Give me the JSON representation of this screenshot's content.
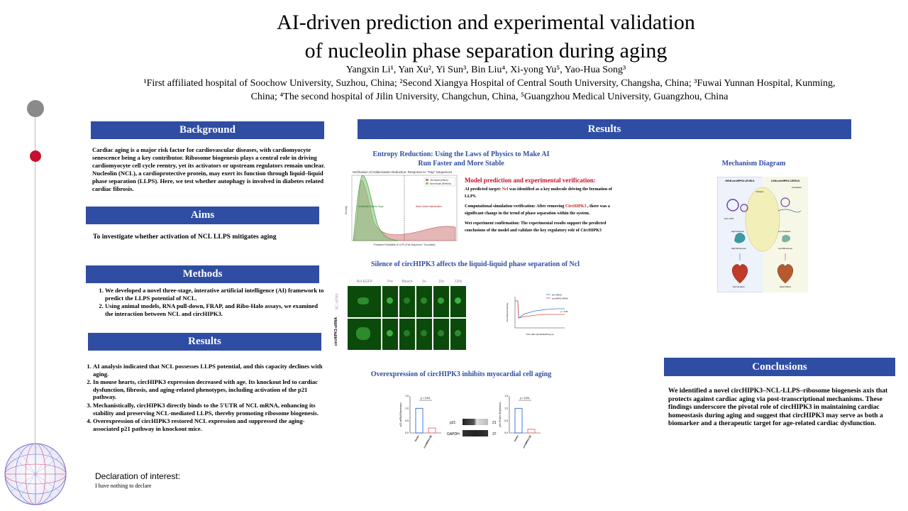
{
  "title": {
    "line1": "AI-driven prediction and experimental validation",
    "line2": "of nucleolin phase separation during aging"
  },
  "authors": "Yangxin Li¹, Yan Xu², Yi Sun³, Bin Liu⁴, Xi-yong Yu⁵, Yao-Hua Song³",
  "affiliations": {
    "line1": "¹First affiliated hospital of Soochow University, Suzhou, China; ²Second Xiangya Hospital of Central South University, Changsha, China; ³Fuwai Yunnan Hospital, Kunming,",
    "line2": "China; ⁴The second hospital of Jilin University, Changchun, China, ⁵Guangzhou Medical University, Guangzhou, China"
  },
  "background": {
    "header": "Background",
    "text": "Cardiac aging is a major risk factor for cardiovascular diseases, with cardiomyocyte senescence being a key contributor. Ribosome biogenesis plays a central role in driving cardiomyocyte cell cycle reentry, yet its activators or upstream regulators remain unclear. Nucleolin (NCL), a cardioprotective protein, may exert its function through liquid–liquid phase separation (LLPS). Here, we test whether autophagy is involved in diabetes related cardiac fibrosis."
  },
  "aims": {
    "header": "Aims",
    "text": "To investigate whether activation of NCL LLPS mitigates aging"
  },
  "methods": {
    "header": "Methods",
    "items": [
      "We developed a novel three-stage, interative artificial intelligence (AI) framework to predict the LLPS potential of NCL.",
      "Using animal models,  RNA pull-down, FRAP, and Ribo-Halo assays, we examined the interaction between NCL and circHIPK3."
    ]
  },
  "results_left": {
    "header": "Results",
    "items": [
      "AI analysis indicated that NCL possesses LLPS potential, and this capacity declines with aging.",
      "In mouse hearts, circHIPK3 expression decreased with age. Its knockout led to cardiac dysfunction, fibrosis, and aging-related phenotypes, including activation of the p21 pathway.",
      "Mechanistically, circHIPK3 directly binds to the 5′UTR of NCL mRNA, enhancing its stability and preserving NCL-mediated LLPS, thereby promoting ribosome biogenesis.",
      "Overexpression of circHIPK3 restored NCL expression and suppressed the aging-associated p21 pathway in knockout mice."
    ]
  },
  "declaration": {
    "title": "Declaration of interest:",
    "text": "I have nothing to declare"
  },
  "results_main": {
    "header": "Results",
    "entropy_title_1": "Entropy Reduction: Using the Laws of Physics to Make AI",
    "entropy_title_2": "Run Faster and More Stable",
    "kde": {
      "title": "Verification of Hallucination Reduction: Response to \"Trap\" Sequences",
      "legend_old": "Old Model (Naive)",
      "legend_new": "New Model (Refined)",
      "xlabel": "Predicted Probability of LLPS (Full-Sequence / Truncated)",
      "ylabel": "Density",
      "annot_left": "Confidently Rejects Traps",
      "annot_right": "Naive Model Hallucination"
    },
    "model": {
      "heading": "Model prediction and experimental verification:",
      "p1_prefix": "AI predicted target: ",
      "p1_target": "Ncl",
      "p1_suffix": " was identified as a key molecule driving the formation of LLPS.",
      "p2_prefix": "Computational simulation verification: After removing ",
      "p2_target": "CircHIPK3",
      "p2_suffix": " , there was a significant change in the trend of phase separation within the system.",
      "p3": "Wet experiment confirmation: The experimental results support the predicted conclusions of the model and validate the key regulatory role of CircHIPK3"
    },
    "silence_title": "Silence of circHIPK3 affects the liquid-liquid phase separation of Ncl",
    "frap": {
      "columns": [
        "Ncl-EGFP",
        "Pre",
        "Bleach",
        "0s",
        "10s",
        "120s"
      ],
      "row_labels": [
        "NC-siRNA",
        "circHIPK3-siRNA"
      ],
      "legend": [
        "NC-siRNA",
        "circHIPK3-siRNA"
      ],
      "xlabel": "Time after photobleaching (s)",
      "ylabel": "Normalized intensity",
      "p_label": "p < 0.05"
    },
    "overexp_title": "Overexpression of circHIPK3 inhibits myocardial cell aging",
    "bars": {
      "left_ylabel": "p21 mRNA Expression",
      "right_ylabel": "p21 Protein Expression",
      "categories": [
        "Vector",
        "circHIPK3 OE"
      ],
      "p_label": "p < 0.001",
      "blot_labels": [
        "p21",
        "GAPDH"
      ],
      "blot_kda": [
        "21",
        "37"
      ]
    }
  },
  "chart_data": [
    {
      "type": "bar",
      "categories": [
        "Vector",
        "circHIPK3 OE"
      ],
      "values": [
        1.0,
        0.2
      ],
      "ylabel": "p21 mRNA Expression",
      "ylim": [
        0,
        1.5
      ]
    },
    {
      "type": "bar",
      "categories": [
        "Vector",
        "circHIPK3 OE"
      ],
      "values": [
        1.0,
        0.15
      ],
      "ylabel": "p21 Protein Expression",
      "ylim": [
        0,
        1.5
      ]
    }
  ],
  "mechanism": {
    "title": "Mechanism Diagram",
    "left_label": "HIGH-circHIPK3 LEVELS",
    "right_label": "LOW-circHIPK3 LEVELS",
    "cytoplasm": "Cytoplasm",
    "nucleus": "Nucleus",
    "left_items": [
      "NCL LLPS",
      "High Nucleolin",
      "High Ribosomes",
      "Normal Heart"
    ],
    "right_items": [
      "Low Nucleolin",
      "Low Ribosomes",
      "Heart Failure"
    ]
  },
  "conclusions": {
    "header": "Conclusions",
    "text": "We identified a novel circHIPK3–NCL-LLPS–ribosome biogenesis axis that protects against cardiac aging via post-transcriptional mechanisms. These findings underscore the pivotal role of circHIPK3 in maintaining cardiac homeostasis during aging and suggest that circHIPK3 may serve as both a biomarker and a therapeutic target for age-related cardiac dysfunction."
  },
  "colors": {
    "header_bar": "#2f4da3",
    "accent_red": "#c8102e",
    "subhead_blue": "#2f4da3"
  }
}
